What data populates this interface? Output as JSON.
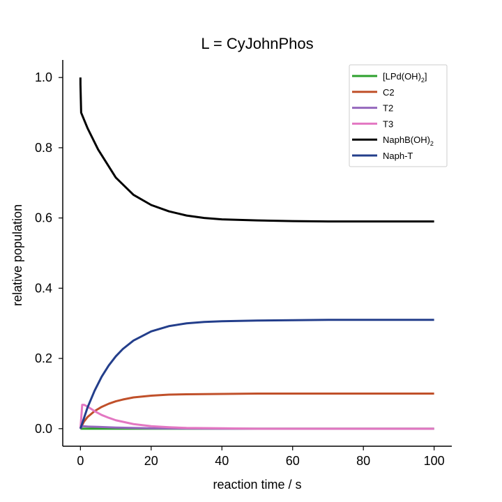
{
  "chart_data": {
    "type": "line",
    "title": "L = CyJohnPhos",
    "xlabel": "reaction time / s",
    "ylabel": "relative population",
    "xlim": [
      -5,
      105
    ],
    "ylim": [
      -0.05,
      1.05
    ],
    "xticks": [
      0,
      20,
      40,
      60,
      80,
      100
    ],
    "xtick_labels": [
      "0",
      "20",
      "40",
      "60",
      "80",
      "100"
    ],
    "yticks": [
      0.0,
      0.2,
      0.4,
      0.6,
      0.8,
      1.0
    ],
    "ytick_labels": [
      "0.0",
      "0.2",
      "0.4",
      "0.6",
      "0.8",
      "1.0"
    ],
    "legend_position": "top-right",
    "grid": false,
    "series": [
      {
        "name": "[LPd(OH)2]",
        "legend_main": "[LPd(OH)",
        "legend_sub": "2",
        "legend_tail": "]",
        "color": "#2ca02c",
        "x": [
          0,
          100
        ],
        "y": [
          0.0,
          0.0
        ]
      },
      {
        "name": "C2",
        "legend_main": "C2",
        "legend_sub": "",
        "legend_tail": "",
        "color": "#c0502a",
        "x": [
          0,
          1,
          2,
          4,
          6,
          8,
          10,
          12,
          15,
          20,
          25,
          30,
          40,
          50,
          60,
          80,
          100
        ],
        "y": [
          0.0,
          0.02,
          0.033,
          0.05,
          0.062,
          0.071,
          0.078,
          0.083,
          0.089,
          0.094,
          0.097,
          0.098,
          0.099,
          0.1,
          0.1,
          0.1,
          0.1
        ]
      },
      {
        "name": "T2",
        "legend_main": "T2",
        "legend_sub": "",
        "legend_tail": "",
        "color": "#9467bd",
        "x": [
          0,
          0.5,
          2,
          5,
          10,
          20,
          40,
          100
        ],
        "y": [
          0.0,
          0.007,
          0.006,
          0.005,
          0.003,
          0.001,
          0.0,
          0.0
        ]
      },
      {
        "name": "T3",
        "legend_main": "T3",
        "legend_sub": "",
        "legend_tail": "",
        "color": "#e377c2",
        "x": [
          0,
          0.5,
          1,
          2,
          4,
          6,
          8,
          10,
          15,
          20,
          25,
          30,
          40,
          50,
          60,
          80,
          100
        ],
        "y": [
          0.0,
          0.068,
          0.068,
          0.063,
          0.05,
          0.039,
          0.031,
          0.024,
          0.013,
          0.007,
          0.004,
          0.002,
          0.001,
          0.0,
          0.0,
          0.0,
          0.0
        ]
      },
      {
        "name": "NaphB(OH)2",
        "legend_main": "NaphB(OH)",
        "legend_sub": "2",
        "legend_tail": "",
        "color": "#000000",
        "x": [
          0,
          0.01,
          0.2,
          2,
          5,
          10,
          15,
          20,
          25,
          30,
          35,
          40,
          50,
          60,
          70,
          80,
          90,
          100
        ],
        "y": [
          1.0,
          0.98,
          0.9,
          0.856,
          0.795,
          0.715,
          0.666,
          0.637,
          0.619,
          0.607,
          0.6,
          0.596,
          0.593,
          0.591,
          0.59,
          0.59,
          0.59,
          0.59
        ]
      },
      {
        "name": "Naph-T",
        "legend_main": "Naph-T",
        "legend_sub": "",
        "legend_tail": "",
        "color": "#233e8b",
        "x": [
          0,
          2,
          4,
          6,
          8,
          10,
          12,
          15,
          20,
          25,
          30,
          35,
          40,
          50,
          60,
          70,
          80,
          100
        ],
        "y": [
          0.0,
          0.06,
          0.108,
          0.148,
          0.18,
          0.206,
          0.227,
          0.251,
          0.277,
          0.292,
          0.3,
          0.304,
          0.306,
          0.308,
          0.309,
          0.31,
          0.31,
          0.31
        ]
      }
    ]
  }
}
